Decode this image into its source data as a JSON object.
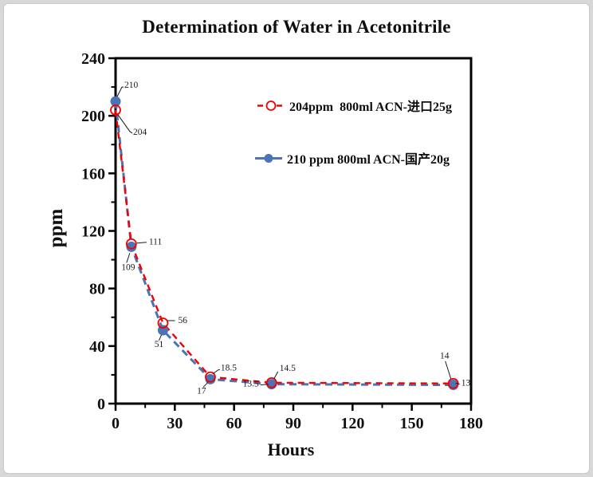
{
  "page": {
    "background": "#d8d8d8",
    "card_background": "#ffffff",
    "card_border": "#c9c9c9"
  },
  "chart_data": {
    "type": "line",
    "title": "Determination of Water in Acetonitrile",
    "xlabel": "Hours",
    "ylabel": "ppm",
    "xlim": [
      0,
      180
    ],
    "ylim": [
      0,
      240
    ],
    "x_major_ticks": [
      0,
      30,
      60,
      90,
      120,
      150,
      180
    ],
    "x_minor_step": 15,
    "y_major_ticks": [
      0,
      40,
      80,
      120,
      160,
      200,
      240
    ],
    "y_minor_step": 20,
    "grid": false,
    "legend_position": "upper-right-inside",
    "x_hours": [
      0,
      8,
      24,
      48,
      79,
      171
    ],
    "series": [
      {
        "name": "204ppm  800ml ACN-进口25g",
        "color": "#f40000",
        "marker": "open-circle",
        "line": "dashed",
        "dash": "8 6",
        "width": 2.4,
        "values": [
          204,
          111,
          56,
          18.5,
          14.5,
          14
        ]
      },
      {
        "name": "210 ppm 800ml ACN-国产20g",
        "color": "#4a74b4",
        "marker": "filled-circle",
        "line": "dashed",
        "dash": "9 6",
        "width": 3,
        "values": [
          210,
          109,
          51,
          17,
          13.5,
          13
        ]
      }
    ],
    "point_labels": [
      {
        "text": "210",
        "series": 1,
        "h": 0,
        "v": 210,
        "anchor": "start",
        "label": [
          11,
          -17
        ],
        "leader": [
          [
            2,
            -6
          ],
          [
            8,
            -18
          ],
          [
            10,
            -18
          ]
        ]
      },
      {
        "text": "204",
        "series": 0,
        "h": 0,
        "v": 204,
        "anchor": "start",
        "label": [
          22,
          31
        ],
        "leader": [
          [
            3,
            6
          ],
          [
            18,
            27
          ],
          [
            21,
            29
          ]
        ]
      },
      {
        "text": "111",
        "series": 0,
        "h": 8,
        "v": 111,
        "anchor": "start",
        "label": [
          22,
          1
        ],
        "leader": [
          [
            7,
            -1
          ],
          [
            19,
            -2
          ]
        ]
      },
      {
        "text": "109",
        "series": 1,
        "h": 8,
        "v": 109,
        "anchor": "middle",
        "label": [
          -4,
          29
        ],
        "leader": [
          [
            -2,
            8
          ],
          [
            -6,
            20
          ]
        ]
      },
      {
        "text": "56",
        "series": 0,
        "h": 24,
        "v": 56,
        "anchor": "start",
        "label": [
          19,
          0
        ],
        "leader": [
          [
            6,
            -3
          ],
          [
            15,
            -3
          ]
        ]
      },
      {
        "text": "51",
        "series": 1,
        "h": 24,
        "v": 51,
        "anchor": "middle",
        "label": [
          -5,
          21
        ],
        "leader": [
          [
            -2,
            6
          ],
          [
            -5,
            13
          ]
        ]
      },
      {
        "text": "18.5",
        "series": 0,
        "h": 48,
        "v": 18.5,
        "anchor": "start",
        "label": [
          13,
          -8
        ],
        "leader": [
          [
            3,
            -4
          ],
          [
            10,
            -9
          ],
          [
            12,
            -9
          ]
        ]
      },
      {
        "text": "17",
        "series": 1,
        "h": 48,
        "v": 17,
        "anchor": "middle",
        "label": [
          -11,
          18
        ],
        "leader": [
          [
            -3,
            4
          ],
          [
            -9,
            10
          ]
        ]
      },
      {
        "text": "14.5",
        "series": 0,
        "h": 79,
        "v": 14.5,
        "anchor": "start",
        "label": [
          10,
          -15
        ],
        "leader": [
          [
            3,
            -5
          ],
          [
            8,
            -14
          ]
        ]
      },
      {
        "text": "13.5",
        "series": 1,
        "h": 79,
        "v": 13.5,
        "anchor": "end",
        "label": [
          -16,
          3
        ],
        "leader": [
          [
            -4,
            0
          ],
          [
            -14,
            1
          ]
        ]
      },
      {
        "text": "14",
        "series": 0,
        "h": 171,
        "v": 14,
        "anchor": "middle",
        "label": [
          -11,
          -31
        ],
        "leader": [
          [
            -3,
            -6
          ],
          [
            -10,
            -28
          ]
        ]
      },
      {
        "text": "13",
        "series": 1,
        "h": 171,
        "v": 13,
        "anchor": "start",
        "label": [
          10,
          1
        ],
        "leader": [
          [
            3,
            -2
          ],
          [
            8,
            -1
          ]
        ]
      }
    ]
  }
}
